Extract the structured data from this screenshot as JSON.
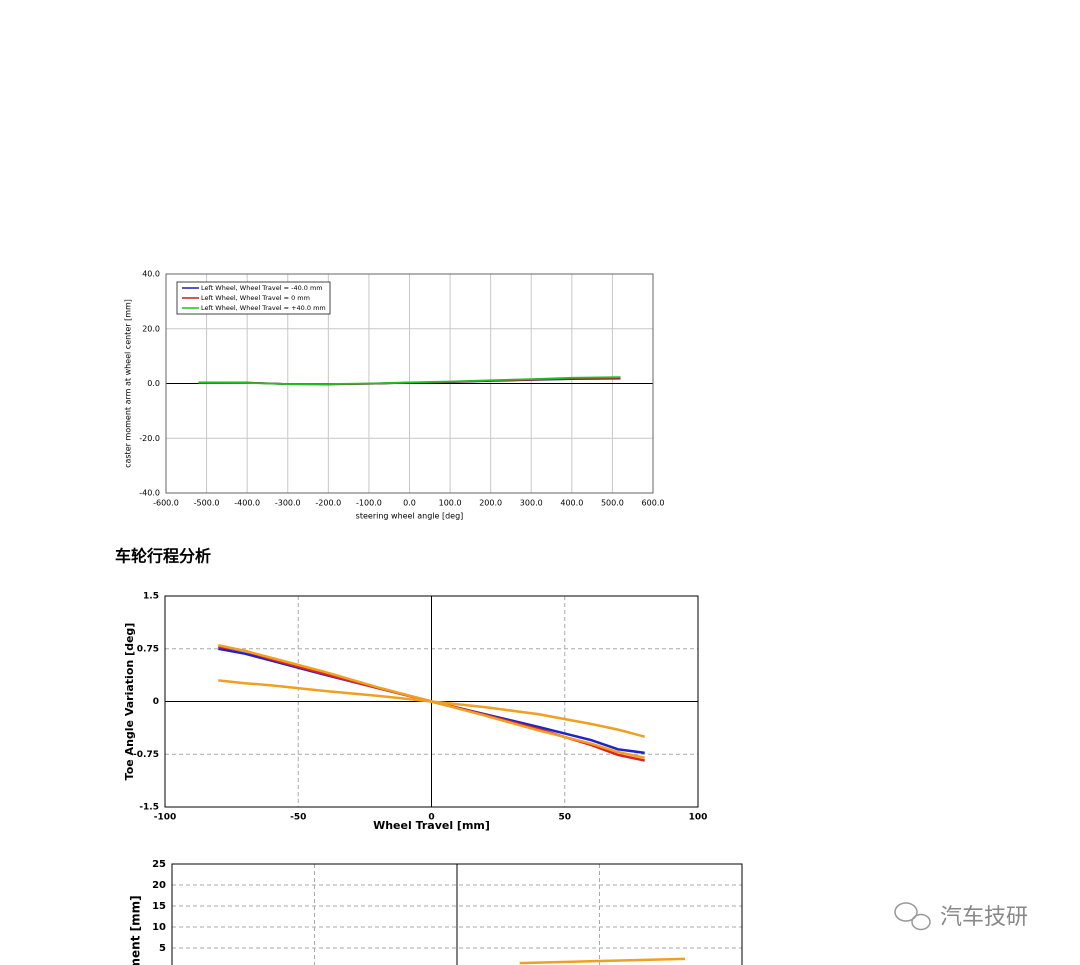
{
  "heading": "车轮行程分析",
  "watermark": "汽车技研",
  "chart_data": [
    {
      "type": "line",
      "xlabel": "steering wheel angle [deg]",
      "ylabel": "caster moment arm at wheel center [mm]",
      "x": [
        -520,
        -400,
        -300,
        -200,
        -100,
        0,
        100,
        200,
        300,
        400,
        520
      ],
      "series": [
        {
          "name": "Left Wheel, Wheel Travel = -40.0 mm",
          "color": "#2020a0",
          "values": [
            0.3,
            0.3,
            -0.2,
            -0.3,
            -0.1,
            0.3,
            0.5,
            0.9,
            1.3,
            1.6,
            1.8
          ]
        },
        {
          "name": "Left Wheel, Wheel Travel = 0 mm",
          "color": "#c02020",
          "values": [
            0.3,
            0.3,
            -0.2,
            -0.3,
            -0.1,
            0.3,
            0.6,
            1.0,
            1.4,
            1.8,
            2.0
          ]
        },
        {
          "name": "Left Wheel, Wheel Travel = +40.0 mm",
          "color": "#20c020",
          "values": [
            0.3,
            0.2,
            -0.2,
            -0.2,
            0.0,
            0.4,
            0.7,
            1.2,
            1.6,
            2.1,
            2.3
          ]
        }
      ],
      "xlim": [
        -600,
        600
      ],
      "xticks": [
        {
          "value": -600,
          "label": "-600.0"
        },
        {
          "value": -500,
          "label": "-500.0"
        },
        {
          "value": -400,
          "label": "-400.0"
        },
        {
          "value": -300,
          "label": "-300.0"
        },
        {
          "value": -200,
          "label": "-200.0"
        },
        {
          "value": -100,
          "label": "-100.0"
        },
        {
          "value": 0,
          "label": "0.0"
        },
        {
          "value": 100,
          "label": "100.0"
        },
        {
          "value": 200,
          "label": "200.0"
        },
        {
          "value": 300,
          "label": "300.0"
        },
        {
          "value": 400,
          "label": "400.0"
        },
        {
          "value": 500,
          "label": "500.0"
        },
        {
          "value": 600,
          "label": "600.0"
        }
      ],
      "ylim": [
        -40,
        40
      ],
      "yticks": [
        {
          "value": -40,
          "label": "-40.0"
        },
        {
          "value": -20,
          "label": "-20.0"
        },
        {
          "value": 0,
          "label": "0.0"
        },
        {
          "value": 20,
          "label": "20.0"
        },
        {
          "value": 40,
          "label": "40.0"
        }
      ],
      "grid": true,
      "grid_style": "solid",
      "legend": "upper left"
    },
    {
      "type": "line",
      "xlabel": "Wheel Travel [mm]",
      "ylabel": "Toe Angle Variation [deg]",
      "x": [
        -80,
        -70,
        -60,
        -40,
        -20,
        0,
        20,
        40,
        60,
        70,
        80
      ],
      "series": [
        {
          "color": "#2222cc",
          "values": [
            0.75,
            0.68,
            0.58,
            0.38,
            0.19,
            0,
            -0.18,
            -0.36,
            -0.55,
            -0.68,
            -0.73
          ]
        },
        {
          "color": "#dd2222",
          "values": [
            0.78,
            0.72,
            0.6,
            0.39,
            0.19,
            0,
            -0.19,
            -0.39,
            -0.62,
            -0.76,
            -0.84
          ]
        },
        {
          "color": "#f0a020",
          "values": [
            0.8,
            0.72,
            0.62,
            0.42,
            0.2,
            0,
            -0.2,
            -0.41,
            -0.6,
            -0.72,
            -0.8
          ]
        },
        {
          "color": "#f0a020",
          "values": [
            0.3,
            0.26,
            0.23,
            0.15,
            0.08,
            0,
            -0.08,
            -0.18,
            -0.32,
            -0.4,
            -0.5
          ]
        }
      ],
      "xlim": [
        -100,
        100
      ],
      "xticks": [
        -100,
        -50,
        0,
        50,
        100
      ],
      "ylim": [
        -1.5,
        1.5
      ],
      "yticks": [
        -1.5,
        -0.75,
        0,
        0.75,
        1.5
      ],
      "grid": true,
      "grid_style": "dashed"
    },
    {
      "type": "line",
      "ylabel": "ement [mm]",
      "x": [
        22,
        50,
        80
      ],
      "series": [
        {
          "color": "#f0a020",
          "values": [
            1.4,
            1.9,
            2.4
          ]
        }
      ],
      "xlim": [
        -100,
        100
      ],
      "xgrid": [
        -50,
        0,
        50
      ],
      "ylim": [
        0,
        25
      ],
      "yticks": [
        5,
        10,
        15,
        20,
        25
      ],
      "grid": true,
      "grid_style": "dashed"
    }
  ]
}
